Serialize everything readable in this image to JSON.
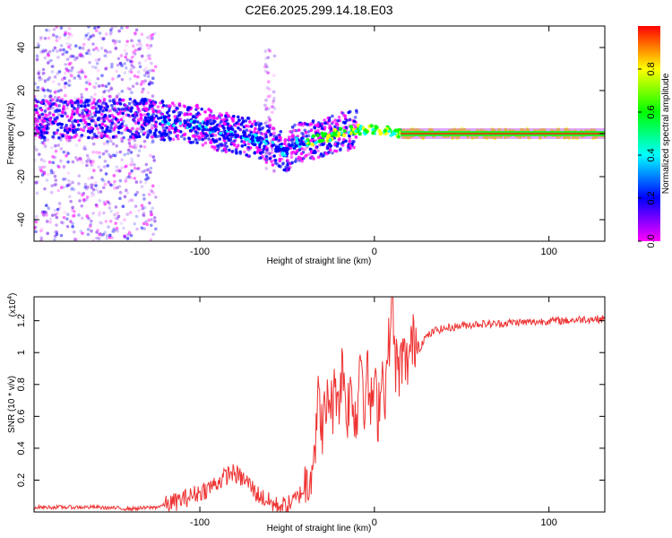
{
  "title": "C2E6.2025.299.14.18.E03",
  "chart_data": [
    {
      "type": "heatmap",
      "name": "spectrogram",
      "xlabel": "Height of straight line (km)",
      "ylabel": "Frequency (Hz)",
      "xlim": [
        -195,
        132
      ],
      "ylim": [
        -50,
        50
      ],
      "xticks": [
        -100,
        0,
        100
      ],
      "yticks": [
        -40,
        -20,
        0,
        20,
        40
      ],
      "ridge": {
        "x": [
          -130,
          -120,
          -110,
          -100,
          -90,
          -80,
          -70,
          -60,
          -55,
          -50,
          -45,
          -40,
          -35,
          -30,
          -25,
          -20,
          -15,
          -10,
          -5,
          0,
          5,
          10,
          15,
          20,
          132
        ],
        "y": [
          7,
          6,
          5,
          4,
          1,
          0,
          -2,
          -5,
          -7,
          -9,
          -4,
          -4,
          -3,
          -2,
          -1,
          1,
          1,
          2,
          1,
          2,
          1,
          1,
          0,
          0,
          0
        ]
      },
      "colorbar": {
        "label": "Normalized spectral amplitude",
        "ticks": [
          0.0,
          0.2,
          0.4,
          0.6,
          0.8
        ],
        "colors": [
          "#ff00ff",
          "#0000ff",
          "#00ffff",
          "#00ff00",
          "#ffff00",
          "#ff0000"
        ]
      }
    },
    {
      "type": "line",
      "name": "snr",
      "xlabel": "Height of straight line (km)",
      "ylabel": "SNR (10 * v/v)",
      "y_multiplier": "(x10",
      "y_multiplier_exp": "4",
      "y_multiplier_close": ")",
      "xlim": [
        -195,
        132
      ],
      "ylim": [
        0,
        1.35
      ],
      "xticks": [
        -100,
        0,
        100
      ],
      "yticks": [
        0.2,
        0.4,
        0.6,
        0.8,
        1.0,
        1.2
      ],
      "color": "#ee3333",
      "series": {
        "name": "SNR",
        "x": [
          -195,
          -180,
          -160,
          -140,
          -125,
          -115,
          -105,
          -95,
          -88,
          -82,
          -77,
          -72,
          -68,
          -64,
          -60,
          -56,
          -50,
          -45,
          -40,
          -37,
          -34,
          -32,
          -30,
          -28,
          -26,
          -24,
          -22,
          -20,
          -18,
          -16,
          -14,
          -12,
          -10,
          -8,
          -6,
          -4,
          -2,
          0,
          2,
          4,
          6,
          8,
          10,
          12,
          14,
          16,
          18,
          20,
          22,
          24,
          26,
          28,
          30,
          35,
          40,
          45,
          50,
          60,
          70,
          80,
          90,
          100,
          110,
          120,
          132
        ],
        "y": [
          0.03,
          0.03,
          0.03,
          0.02,
          0.03,
          0.06,
          0.1,
          0.15,
          0.2,
          0.25,
          0.22,
          0.18,
          0.12,
          0.09,
          0.06,
          0.04,
          0.04,
          0.08,
          0.15,
          0.25,
          0.45,
          0.7,
          0.55,
          0.6,
          0.75,
          0.65,
          0.8,
          0.72,
          0.95,
          0.6,
          0.75,
          0.7,
          0.55,
          1.1,
          0.7,
          0.85,
          0.65,
          0.8,
          0.6,
          0.9,
          0.75,
          1.0,
          1.35,
          0.95,
          0.85,
          1.0,
          0.9,
          1.0,
          1.05,
          1.12,
          1.02,
          1.08,
          1.1,
          1.14,
          1.15,
          1.16,
          1.17,
          1.18,
          1.18,
          1.19,
          1.19,
          1.2,
          1.2,
          1.21,
          1.21
        ]
      }
    }
  ]
}
